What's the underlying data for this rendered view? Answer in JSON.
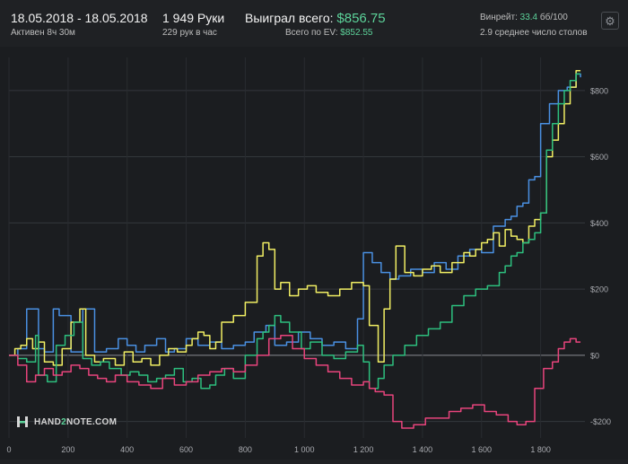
{
  "header": {
    "date_range": "18.05.2018 - 18.05.2018",
    "active_time": "Активен 8ч 30м",
    "hands": "1 949 Руки",
    "hands_per_hour": "229 рук в час",
    "won_label": "Выиграл всего:",
    "won_value": "$856.75",
    "ev_label": "Всего по EV:",
    "ev_value": "$852.55",
    "winrate_label": "Винрейт:",
    "winrate_value": "33.4",
    "winrate_unit": "бб/100",
    "tables_text": "2.9 среднее число столов"
  },
  "settings_icon": "gear-icon",
  "logo": {
    "prefix": "HAND",
    "middle": "2",
    "suffix": "NOTE.COM",
    "icon": "hand2note-logo-icon"
  },
  "colors": {
    "green": "#2dbf7e",
    "yellow": "#f1ee63",
    "blue": "#4a90e2",
    "pink": "#e8447c",
    "value_green": "#5cd39a"
  },
  "chart_data": {
    "type": "line",
    "xlim": [
      0,
      1950
    ],
    "ylim": [
      -250,
      900
    ],
    "x_ticks": [
      0,
      200,
      400,
      600,
      800,
      1000,
      1200,
      1400,
      1600,
      1800
    ],
    "x_tick_labels": [
      "0",
      "200",
      "400",
      "600",
      "800",
      "1 000",
      "1 200",
      "1 400",
      "1 600",
      "1 800"
    ],
    "y_ticks": [
      -200,
      0,
      200,
      400,
      600,
      800
    ],
    "y_tick_labels": [
      "-$200",
      "$0",
      "$200",
      "$400",
      "$600",
      "$800"
    ],
    "grid": true,
    "series": [
      {
        "color": "#4a90e2",
        "x": [
          0,
          30,
          60,
          100,
          120,
          150,
          170,
          210,
          250,
          290,
          330,
          370,
          400,
          430,
          460,
          500,
          530,
          560,
          600,
          640,
          680,
          720,
          760,
          800,
          830,
          870,
          900,
          940,
          980,
          1020,
          1060,
          1100,
          1140,
          1180,
          1200,
          1230,
          1260,
          1290,
          1320,
          1360,
          1400,
          1440,
          1480,
          1520,
          1560,
          1600,
          1640,
          1680,
          1700,
          1720,
          1740,
          1760,
          1780,
          1800,
          1830,
          1860,
          1890,
          1920,
          1935
        ],
        "values": [
          0,
          20,
          140,
          20,
          10,
          140,
          120,
          10,
          140,
          10,
          20,
          50,
          30,
          10,
          30,
          50,
          10,
          20,
          50,
          30,
          40,
          20,
          30,
          40,
          70,
          90,
          30,
          40,
          70,
          50,
          30,
          40,
          20,
          110,
          310,
          280,
          250,
          230,
          240,
          260,
          250,
          280,
          260,
          300,
          320,
          310,
          390,
          410,
          420,
          450,
          460,
          530,
          540,
          700,
          760,
          800,
          810,
          850,
          840
        ]
      },
      {
        "color": "#f1ee63",
        "x": [
          0,
          20,
          40,
          60,
          80,
          100,
          120,
          150,
          180,
          210,
          240,
          260,
          290,
          320,
          360,
          390,
          420,
          450,
          480,
          510,
          540,
          570,
          600,
          620,
          640,
          660,
          680,
          700,
          720,
          760,
          800,
          840,
          860,
          880,
          900,
          920,
          950,
          980,
          1010,
          1040,
          1080,
          1120,
          1160,
          1200,
          1220,
          1250,
          1270,
          1290,
          1310,
          1340,
          1370,
          1400,
          1430,
          1460,
          1500,
          1540,
          1560,
          1580,
          1600,
          1620,
          1640,
          1660,
          1680,
          1700,
          1720,
          1740,
          1760,
          1780,
          1800,
          1820,
          1840,
          1860,
          1880,
          1900,
          1920,
          1935
        ],
        "values": [
          0,
          20,
          30,
          50,
          20,
          40,
          -20,
          -30,
          20,
          100,
          140,
          0,
          -20,
          -10,
          -30,
          10,
          -20,
          -10,
          -30,
          0,
          20,
          10,
          30,
          50,
          70,
          60,
          20,
          40,
          100,
          120,
          160,
          300,
          340,
          320,
          200,
          220,
          180,
          200,
          210,
          190,
          180,
          200,
          220,
          210,
          90,
          -20,
          140,
          230,
          330,
          250,
          240,
          260,
          270,
          250,
          280,
          310,
          300,
          320,
          340,
          350,
          370,
          330,
          380,
          360,
          350,
          340,
          390,
          410,
          430,
          600,
          650,
          700,
          760,
          810,
          860,
          860
        ]
      },
      {
        "color": "#2dbf7e",
        "x": [
          0,
          30,
          60,
          90,
          100,
          130,
          160,
          190,
          220,
          250,
          280,
          310,
          340,
          380,
          410,
          440,
          470,
          500,
          530,
          560,
          590,
          620,
          650,
          680,
          700,
          730,
          760,
          800,
          840,
          860,
          880,
          900,
          920,
          950,
          990,
          1020,
          1060,
          1100,
          1140,
          1180,
          1200,
          1220,
          1250,
          1270,
          1300,
          1340,
          1380,
          1420,
          1460,
          1500,
          1540,
          1580,
          1620,
          1660,
          1680,
          1700,
          1720,
          1740,
          1760,
          1780,
          1800,
          1820,
          1840,
          1860,
          1880,
          1900,
          1920,
          1935
        ],
        "values": [
          0,
          -10,
          -20,
          60,
          -60,
          -80,
          30,
          60,
          100,
          -10,
          -30,
          -20,
          -40,
          -60,
          -50,
          -60,
          -80,
          -70,
          -60,
          -40,
          -80,
          -70,
          -100,
          -90,
          -60,
          -40,
          -70,
          0,
          50,
          70,
          90,
          120,
          100,
          70,
          20,
          40,
          0,
          -10,
          10,
          30,
          -20,
          -100,
          -70,
          -30,
          0,
          30,
          60,
          80,
          100,
          150,
          180,
          200,
          210,
          250,
          270,
          300,
          310,
          340,
          350,
          370,
          430,
          620,
          700,
          760,
          800,
          830,
          850,
          850
        ]
      },
      {
        "color": "#e8447c",
        "x": [
          0,
          30,
          60,
          90,
          120,
          150,
          180,
          210,
          240,
          270,
          300,
          330,
          360,
          400,
          440,
          480,
          520,
          560,
          600,
          640,
          680,
          720,
          760,
          800,
          840,
          880,
          920,
          960,
          1000,
          1040,
          1080,
          1120,
          1160,
          1200,
          1220,
          1240,
          1270,
          1300,
          1330,
          1370,
          1410,
          1450,
          1490,
          1530,
          1570,
          1610,
          1650,
          1690,
          1720,
          1750,
          1780,
          1810,
          1840,
          1860,
          1880,
          1900,
          1920,
          1935
        ],
        "values": [
          0,
          -30,
          -80,
          -60,
          -40,
          -60,
          -50,
          -30,
          -40,
          -60,
          -70,
          -80,
          -60,
          -80,
          -90,
          -100,
          -70,
          -90,
          -80,
          -60,
          -50,
          -40,
          -50,
          -30,
          0,
          50,
          60,
          20,
          -10,
          -30,
          -50,
          -70,
          -90,
          -80,
          -100,
          -110,
          -120,
          -200,
          -220,
          -210,
          -190,
          -190,
          -170,
          -160,
          -150,
          -170,
          -180,
          -200,
          -210,
          -200,
          -100,
          -40,
          -20,
          20,
          40,
          50,
          40,
          40
        ]
      }
    ]
  }
}
